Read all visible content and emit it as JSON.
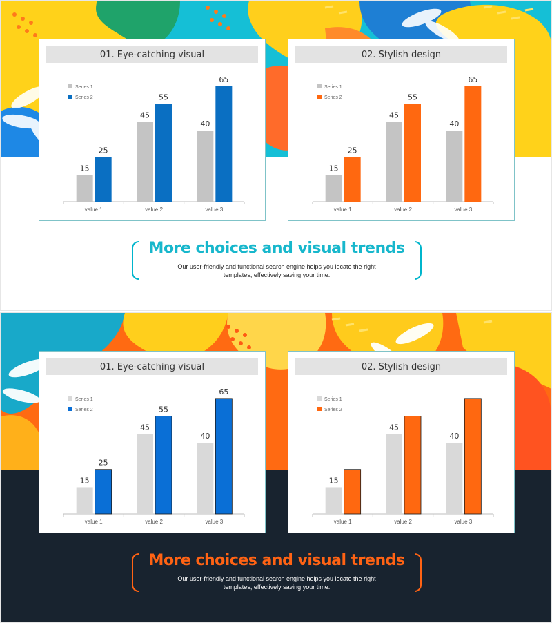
{
  "slides": [
    {
      "theme": "light",
      "accent": "#17b7cc",
      "cards": [
        {
          "title": "01. Eye-catching visual",
          "series2_color": "#0a6fc2"
        },
        {
          "title": "02. Stylish design",
          "series2_color": "#ff6810"
        }
      ],
      "headline": "More choices and visual trends",
      "body_line1": "Our user-friendly and functional search engine helps you locate the right",
      "body_line2": "templates, effectively saving your time."
    },
    {
      "theme": "dark",
      "accent": "#ff6314",
      "cards": [
        {
          "title": "01. Eye-catching visual",
          "series2_color": "#0a6fd6"
        },
        {
          "title": "02. Stylish design",
          "series2_color": "#ff6810"
        }
      ],
      "headline": "More choices and visual trends",
      "body_line1": "Our user-friendly and functional search engine helps you locate the right",
      "body_line2": "templates, effectively saving your time."
    }
  ],
  "chart_data": [
    {
      "type": "bar",
      "title": "01. Eye-catching visual",
      "categories": [
        "value 1",
        "value 2",
        "value 3"
      ],
      "series": [
        {
          "name": "Series 1",
          "values": [
            15,
            45,
            40
          ],
          "color": "#c4c4c4"
        },
        {
          "name": "Series 2",
          "values": [
            25,
            55,
            65
          ],
          "color": "#0a6fc2"
        }
      ],
      "ylim": [
        0,
        70
      ],
      "grid": false,
      "legend": "top-left",
      "data_labels": true
    },
    {
      "type": "bar",
      "title": "02. Stylish design",
      "categories": [
        "value 1",
        "value 2",
        "value 3"
      ],
      "series": [
        {
          "name": "Series 1",
          "values": [
            15,
            45,
            40
          ],
          "color": "#c4c4c4"
        },
        {
          "name": "Series 2",
          "values": [
            25,
            55,
            65
          ],
          "color": "#ff6810"
        }
      ],
      "ylim": [
        0,
        70
      ],
      "grid": false,
      "legend": "top-left",
      "data_labels": true
    },
    {
      "type": "bar",
      "title": "01. Eye-catching visual",
      "categories": [
        "value 1",
        "value 2",
        "value 3"
      ],
      "series": [
        {
          "name": "Series 1",
          "values": [
            15,
            45,
            40
          ],
          "color": "#d9d9d9"
        },
        {
          "name": "Series 2",
          "values": [
            25,
            55,
            65
          ],
          "color": "#0a6fd6"
        }
      ],
      "ylim": [
        0,
        70
      ],
      "grid": false,
      "legend": "top-left",
      "data_labels": true
    },
    {
      "type": "bar",
      "title": "02. Stylish design",
      "categories": [
        "value 1",
        "value 2",
        "value 3"
      ],
      "series": [
        {
          "name": "Series 1",
          "values": [
            15,
            45,
            40
          ],
          "color": "#d9d9d9"
        },
        {
          "name": "Series 2",
          "values": [
            25,
            55,
            65
          ],
          "color": "#ff6810"
        }
      ],
      "ylim": [
        0,
        70
      ],
      "grid": false,
      "legend": "top-left",
      "data_labels": "partial",
      "labeled_series": [
        "Series 1"
      ]
    }
  ]
}
